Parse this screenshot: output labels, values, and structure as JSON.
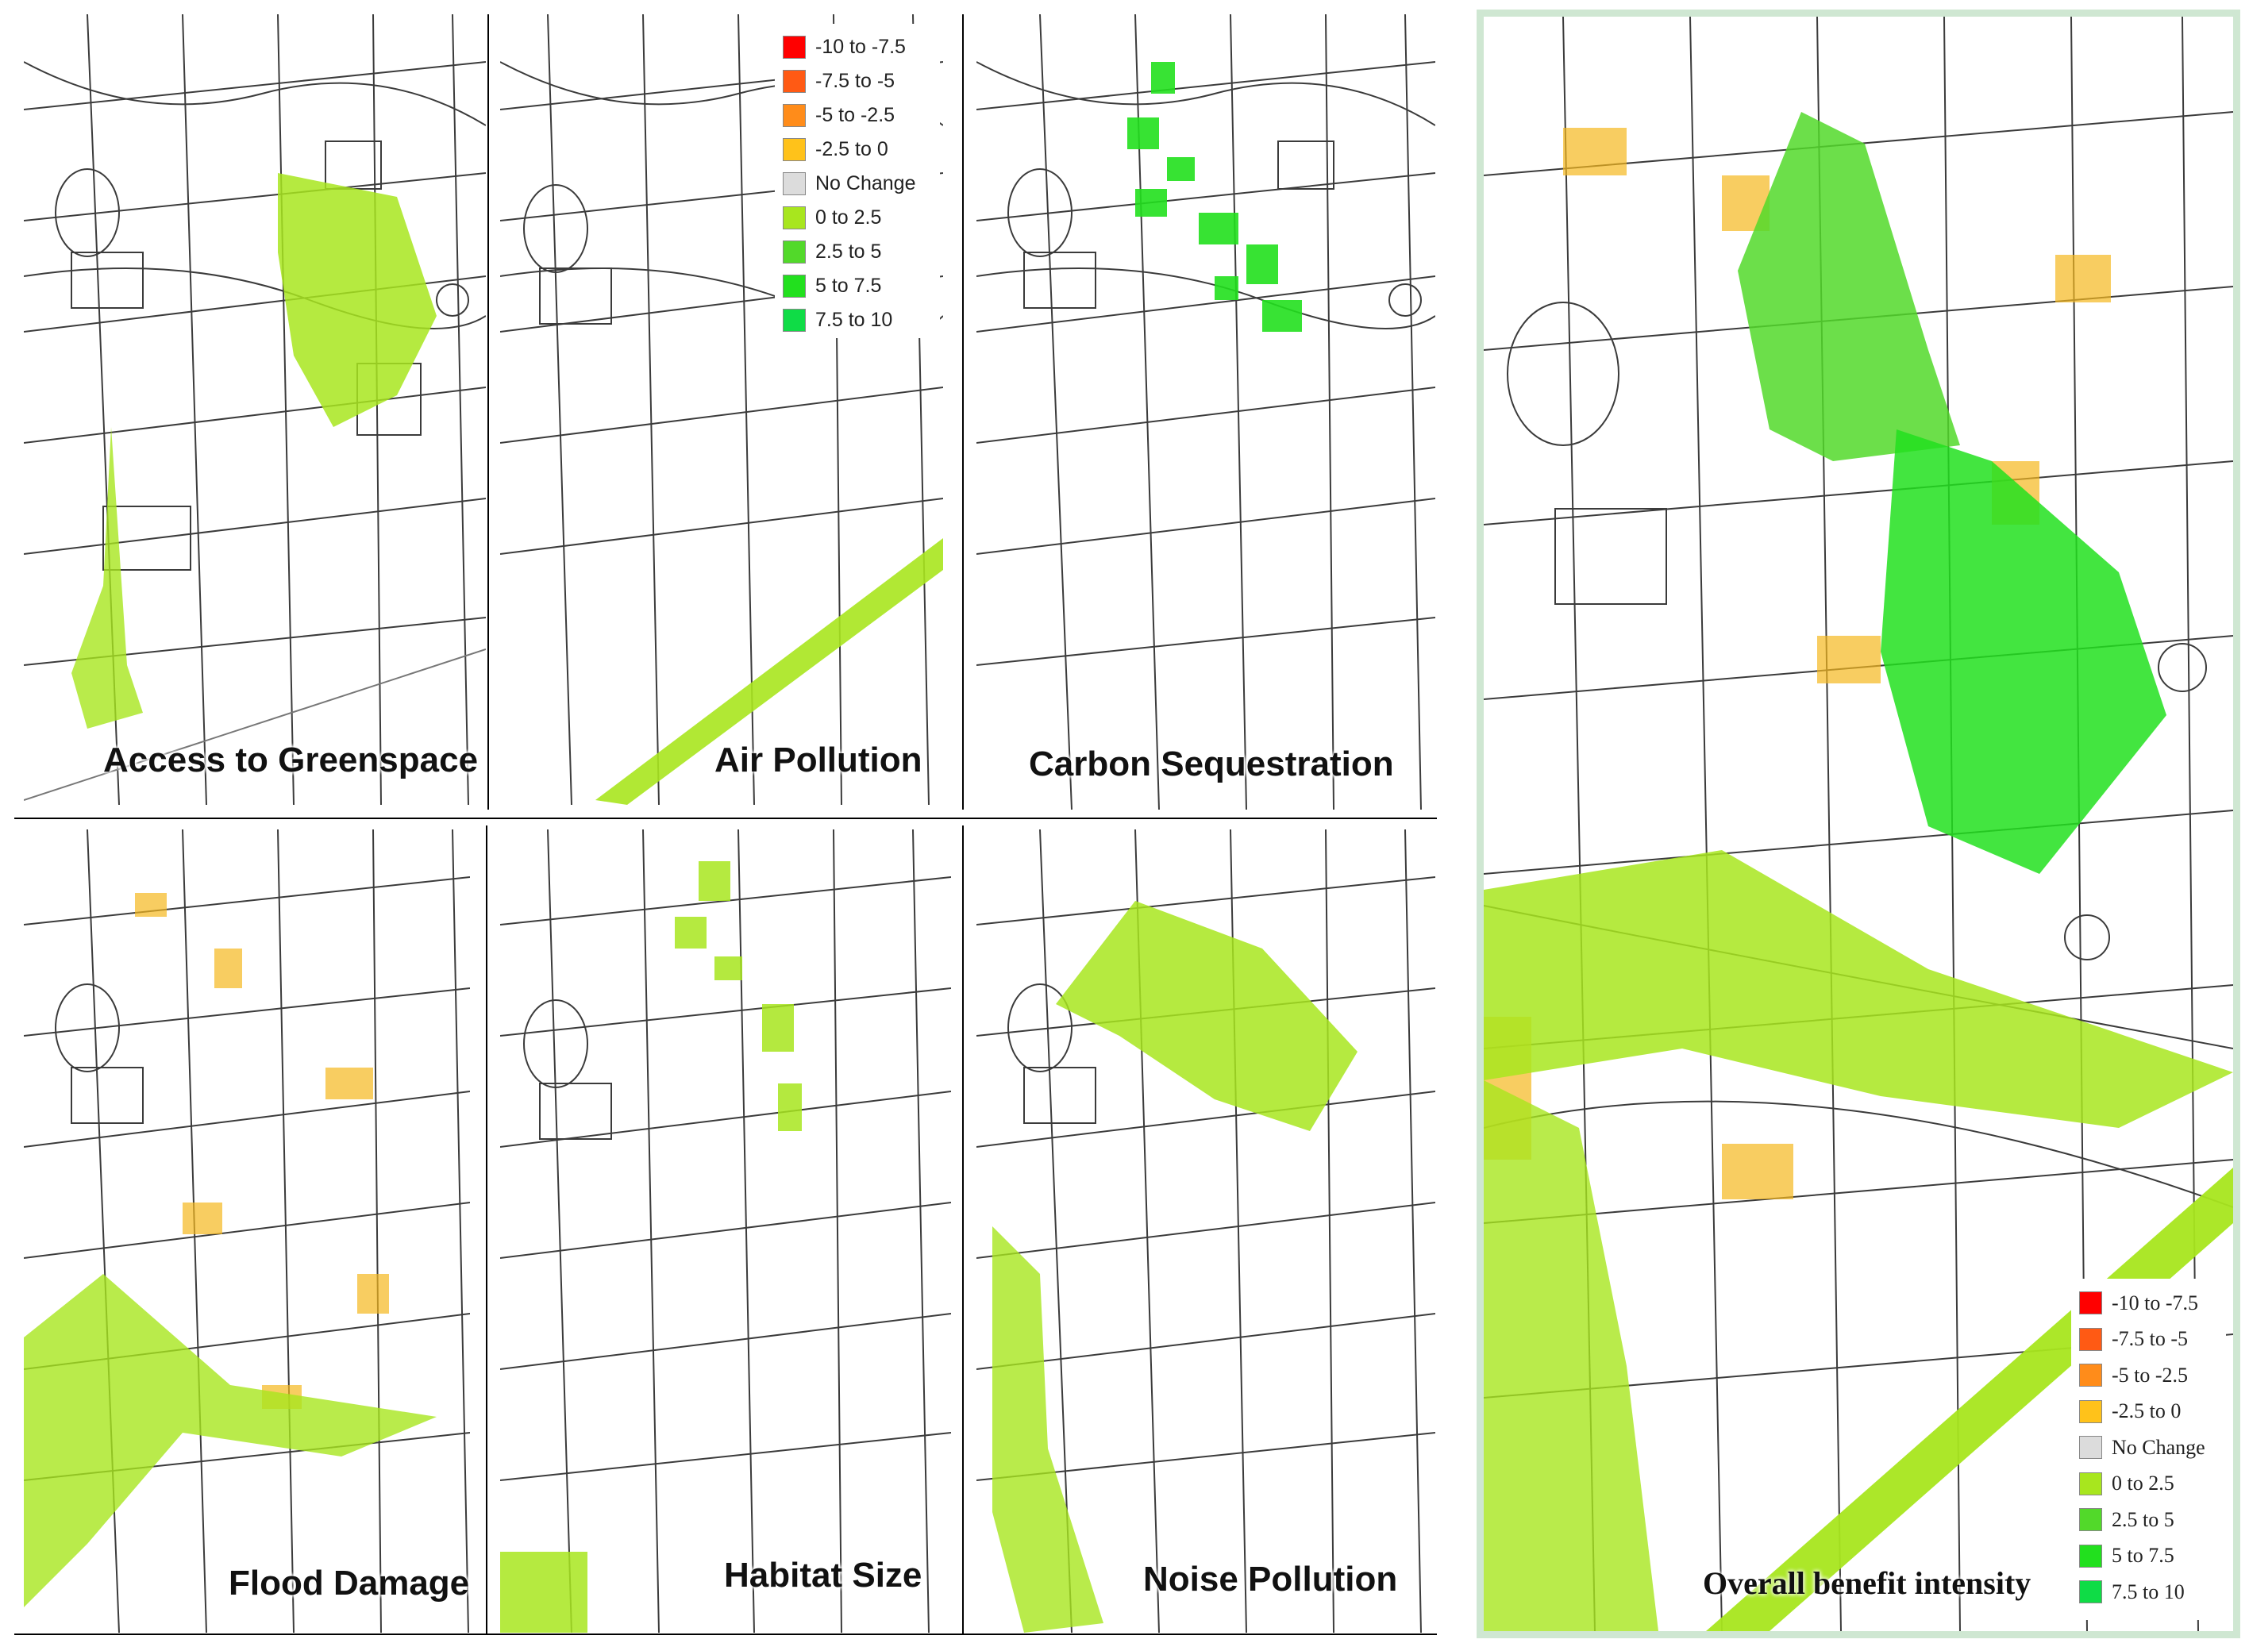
{
  "panels": {
    "access": {
      "title": "Access to Greenspace"
    },
    "air": {
      "title": "Air Pollution"
    },
    "carbon": {
      "title": "Carbon Sequestration"
    },
    "flood": {
      "title": "Flood Damage"
    },
    "habitat": {
      "title": "Habitat Size"
    },
    "noise": {
      "title": "Noise Pollution"
    },
    "overall": {
      "title": "Overall benefit intensity"
    }
  },
  "legend": {
    "items": [
      {
        "label": "-10 to -7.5",
        "color": "#ff0000"
      },
      {
        "label": "-7.5 to -5",
        "color": "#ff5a14"
      },
      {
        "label": "-5 to -2.5",
        "color": "#ff8c1a"
      },
      {
        "label": "-2.5 to 0",
        "color": "#ffc21a"
      },
      {
        "label": "No Change",
        "color": "#dcdcdc"
      },
      {
        "label": "0 to 2.5",
        "color": "#a8e61e"
      },
      {
        "label": "2.5 to 5",
        "color": "#52d92a"
      },
      {
        "label": "5 to 7.5",
        "color": "#22e01e"
      },
      {
        "label": "7.5 to 10",
        "color": "#0fdc46"
      }
    ]
  },
  "colors": {
    "street_lines": "#1a1a1a",
    "frame_border": "#cfe7d2",
    "benefit_low": "#a8e61e",
    "benefit_high": "#22e01e",
    "negative": "#f5b81e"
  }
}
